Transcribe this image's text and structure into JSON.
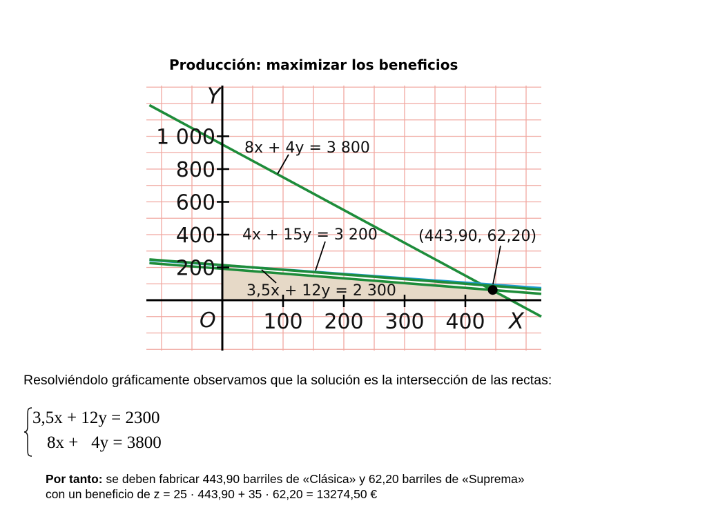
{
  "title": "Producción: maximizar los beneficios",
  "chart_data": {
    "type": "line",
    "xlabel": "X",
    "ylabel": "Y",
    "origin_label": "O",
    "x_ticks": [
      100,
      200,
      300,
      400
    ],
    "x_tick_labels": [
      "100",
      "200",
      "300",
      "400"
    ],
    "y_ticks": [
      200,
      400,
      600,
      800,
      1000
    ],
    "y_tick_labels": [
      "200",
      "400",
      "600",
      "800",
      "1 000"
    ],
    "xlim": [
      -125,
      525
    ],
    "ylim": [
      -300,
      1300
    ],
    "grid": true,
    "lines": [
      {
        "name": "8x + 4y = 3 800",
        "a": 8,
        "b": 4,
        "c": 3800,
        "color": "#1e8c3a"
      },
      {
        "name": "4x + 15y = 3 200",
        "a": 4,
        "b": 15,
        "c": 3200,
        "color": "#1f9bd0"
      },
      {
        "name": "3,5x + 12y = 2 300",
        "a": 3.5,
        "b": 12,
        "c": 2300,
        "color": "#1e8c3a"
      }
    ],
    "extra_line": {
      "a": 1,
      "b": 3.5,
      "c": 750,
      "color": "#1e8c3a"
    },
    "feasible_region": [
      [
        0,
        0
      ],
      [
        0,
        191.67
      ],
      [
        443.9,
        62.2
      ],
      [
        475,
        0
      ]
    ],
    "region_color": "#e6d9c7",
    "optimum": {
      "x": 443.9,
      "y": 62.2,
      "label": "(443,90, 62,20)"
    }
  },
  "description": "Resolviéndolo gráficamente observamos que la solución es la intersección de las rectas:",
  "system": {
    "eq1": "3,5x + 12y = 2300",
    "eq2": "8x +   4y = 3800"
  },
  "conclusion": {
    "bold": "Por tanto:",
    "line1": " se deben fabricar 443,90 barriles de «Clásica» y  62,20 barriles de «Suprema»",
    "line2": "con un beneficio de z = 25 · 443,90 + 35 · 62,20 = 13274,50 €"
  }
}
